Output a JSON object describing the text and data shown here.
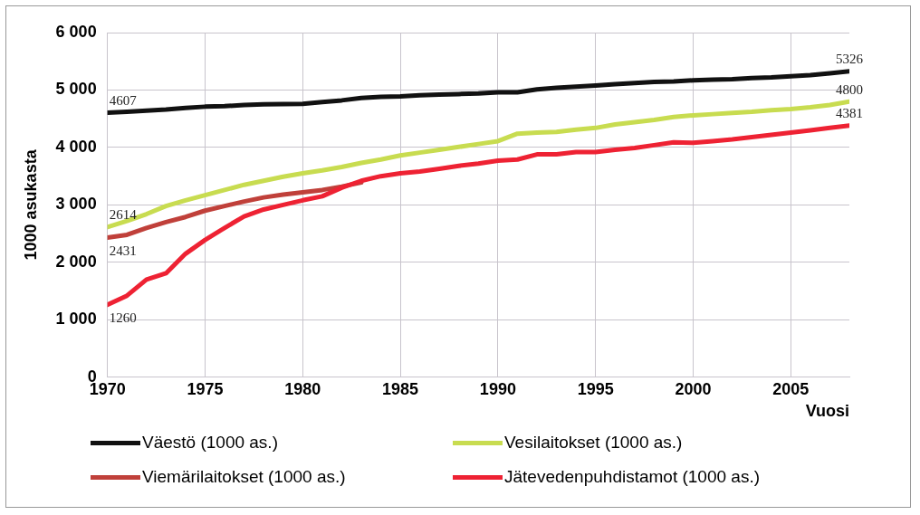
{
  "chart_data": {
    "type": "line",
    "xlabel": "Vuosi",
    "ylabel": "1000 asukasta",
    "x": [
      1970,
      1971,
      1972,
      1973,
      1974,
      1975,
      1976,
      1977,
      1978,
      1979,
      1980,
      1981,
      1982,
      1983,
      1984,
      1985,
      1986,
      1987,
      1988,
      1989,
      1990,
      1991,
      1992,
      1993,
      1994,
      1995,
      1996,
      1997,
      1998,
      1999,
      2000,
      2001,
      2002,
      2003,
      2004,
      2005,
      2006,
      2007,
      2008
    ],
    "xlim": [
      1970,
      2008
    ],
    "xticks": [
      1970,
      1975,
      1980,
      1985,
      1990,
      1995,
      2000,
      2005
    ],
    "ylim": [
      0,
      6000
    ],
    "yticks": [
      {
        "value": 0,
        "label": "0"
      },
      {
        "value": 1000,
        "label": "1 000"
      },
      {
        "value": 2000,
        "label": "2 000"
      },
      {
        "value": 3000,
        "label": "3 000"
      },
      {
        "value": 4000,
        "label": "4 000"
      },
      {
        "value": 5000,
        "label": "5 000"
      },
      {
        "value": 6000,
        "label": "6 000"
      }
    ],
    "grid": true,
    "legend": "bottom",
    "marker": "none",
    "line_style": "solid",
    "series": [
      {
        "name": "Väestö (1000 as.)",
        "color": "#111111",
        "values": [
          4607,
          4620,
          4640,
          4660,
          4690,
          4710,
          4720,
          4740,
          4750,
          4755,
          4760,
          4790,
          4820,
          4860,
          4880,
          4890,
          4910,
          4920,
          4930,
          4940,
          4960,
          4960,
          5010,
          5040,
          5060,
          5080,
          5100,
          5120,
          5140,
          5150,
          5170,
          5180,
          5190,
          5210,
          5220,
          5240,
          5260,
          5290,
          5326
        ],
        "value_labels": [
          "4607",
          null,
          null,
          null,
          null,
          null,
          null,
          null,
          null,
          null,
          null,
          null,
          null,
          null,
          null,
          null,
          null,
          null,
          null,
          null,
          null,
          null,
          null,
          null,
          null,
          null,
          null,
          null,
          null,
          null,
          null,
          null,
          null,
          null,
          null,
          null,
          null,
          null,
          "5326"
        ]
      },
      {
        "name": "Vesilaitokset (1000 as.)",
        "color": "#c8dc50",
        "values": [
          2614,
          2720,
          2840,
          2980,
          3080,
          3170,
          3260,
          3350,
          3420,
          3490,
          3550,
          3600,
          3660,
          3730,
          3790,
          3860,
          3910,
          3960,
          4010,
          4060,
          4110,
          4240,
          4260,
          4270,
          4310,
          4340,
          4400,
          4440,
          4480,
          4530,
          4560,
          4580,
          4600,
          4620,
          4650,
          4670,
          4700,
          4740,
          4800
        ],
        "value_labels": [
          "2614",
          null,
          null,
          null,
          null,
          null,
          null,
          null,
          null,
          null,
          null,
          null,
          null,
          null,
          null,
          null,
          null,
          null,
          null,
          null,
          null,
          null,
          null,
          null,
          null,
          null,
          null,
          null,
          null,
          null,
          null,
          null,
          null,
          null,
          null,
          null,
          null,
          null,
          "4800"
        ]
      },
      {
        "name": "Viemärilaitokset (1000 as.)",
        "color": "#c0403a",
        "values": [
          2431,
          2480,
          2600,
          2700,
          2790,
          2900,
          2980,
          3060,
          3130,
          3180,
          3220,
          3260,
          3320,
          3390,
          null,
          null,
          null,
          null,
          null,
          null,
          null,
          null,
          null,
          null,
          null,
          null,
          null,
          null,
          null,
          null,
          null,
          null,
          null,
          null,
          null,
          null,
          null,
          null,
          null
        ],
        "value_labels": [
          "2431",
          null,
          null,
          null,
          null,
          null,
          null,
          null,
          null,
          null,
          null,
          null,
          null,
          null,
          null,
          null,
          null,
          null,
          null,
          null,
          null,
          null,
          null,
          null,
          null,
          null,
          null,
          null,
          null,
          null,
          null,
          null,
          null,
          null,
          null,
          null,
          null,
          null,
          null
        ]
      },
      {
        "name": "Jätevedenpuhdistamot (1000 as.)",
        "color": "#ee2233",
        "values": [
          1260,
          1420,
          1700,
          1810,
          2150,
          2390,
          2600,
          2800,
          2920,
          3000,
          3080,
          3150,
          3300,
          3420,
          3500,
          3550,
          3580,
          3630,
          3680,
          3720,
          3770,
          3790,
          3880,
          3880,
          3920,
          3920,
          3960,
          3990,
          4040,
          4090,
          4080,
          4110,
          4140,
          4180,
          4220,
          4260,
          4300,
          4340,
          4381
        ],
        "value_labels": [
          "1260",
          null,
          null,
          null,
          null,
          null,
          null,
          null,
          null,
          null,
          null,
          null,
          null,
          null,
          null,
          null,
          null,
          null,
          null,
          null,
          null,
          null,
          null,
          null,
          null,
          null,
          null,
          null,
          null,
          null,
          null,
          null,
          null,
          null,
          null,
          null,
          null,
          null,
          "4381"
        ]
      }
    ]
  }
}
